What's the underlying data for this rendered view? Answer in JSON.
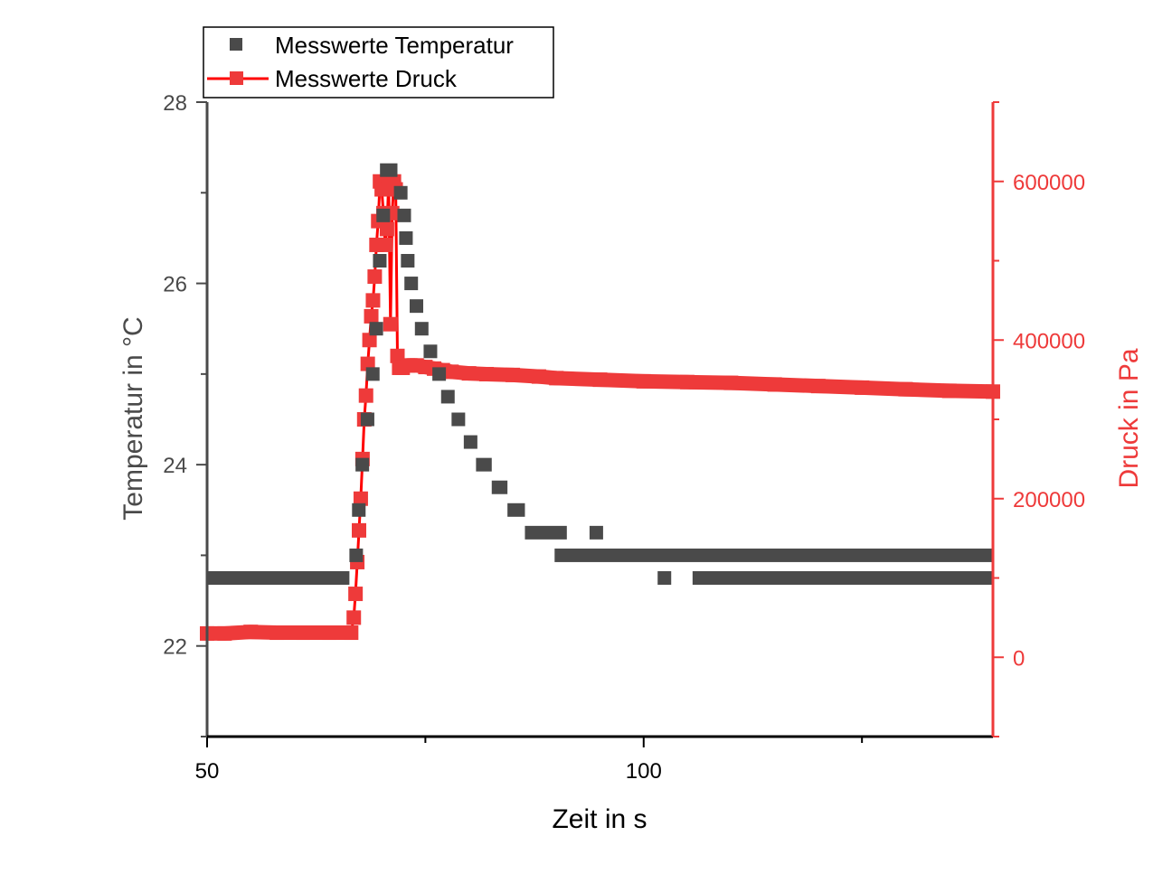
{
  "chart_data": {
    "type": "scatter",
    "title": "",
    "xlabel": "Zeit in s",
    "ylabel_left": "Temperatur in °C",
    "ylabel_right": "Druck in Pa",
    "xlim": [
      50,
      140
    ],
    "ylim_left": [
      21,
      28
    ],
    "ylim_right": [
      -100000,
      700000
    ],
    "x_ticks": [
      50,
      100
    ],
    "y_left_ticks": [
      22,
      24,
      26,
      28
    ],
    "y_right_ticks": [
      0,
      200000,
      400000,
      600000
    ],
    "legend_position": "top-left",
    "grid": false,
    "colors": {
      "temperature": "#4a4a4a",
      "pressure": "#ee3a3a",
      "pressure_line": "#ff0000",
      "right_axis": "#ee3a3a"
    },
    "series": [
      {
        "name": "Messwerte Temperatur",
        "axis": "left",
        "marker": "square",
        "segments": [
          {
            "x0": 50.0,
            "x1": 66.3,
            "y": 22.75
          },
          {
            "x0": 66.3,
            "x1": 66.6,
            "y": 23.0
          },
          {
            "x0": 66.6,
            "x1": 67.0,
            "y": 23.5
          },
          {
            "x0": 67.0,
            "x1": 67.6,
            "y": 24.0
          },
          {
            "x0": 67.6,
            "x1": 68.2,
            "y": 24.5
          },
          {
            "x0": 68.2,
            "x1": 68.6,
            "y": 25.0
          },
          {
            "x0": 68.6,
            "x1": 69.0,
            "y": 25.5
          },
          {
            "x0": 69.0,
            "x1": 69.4,
            "y": 26.25
          },
          {
            "x0": 69.4,
            "x1": 69.8,
            "y": 26.75
          },
          {
            "x0": 69.8,
            "x1": 71.8,
            "y": 27.25
          },
          {
            "x0": 71.4,
            "x1": 72.0,
            "y": 27.0
          },
          {
            "x0": 71.8,
            "x1": 72.2,
            "y": 26.75
          },
          {
            "x0": 72.0,
            "x1": 72.4,
            "y": 26.5
          },
          {
            "x0": 72.2,
            "x1": 72.8,
            "y": 26.25
          },
          {
            "x0": 72.6,
            "x1": 73.2,
            "y": 26.0
          },
          {
            "x0": 73.2,
            "x1": 74.0,
            "y": 25.75
          },
          {
            "x0": 73.8,
            "x1": 74.8,
            "y": 25.5
          },
          {
            "x0": 74.8,
            "x1": 75.8,
            "y": 25.25
          },
          {
            "x0": 75.8,
            "x1": 76.8,
            "y": 25.0
          },
          {
            "x0": 76.8,
            "x1": 78.0,
            "y": 24.75
          },
          {
            "x0": 78.0,
            "x1": 79.4,
            "y": 24.5
          },
          {
            "x0": 79.4,
            "x1": 80.8,
            "y": 24.25
          },
          {
            "x0": 80.8,
            "x1": 82.6,
            "y": 24.0
          },
          {
            "x0": 82.6,
            "x1": 84.4,
            "y": 23.75
          },
          {
            "x0": 84.4,
            "x1": 86.4,
            "y": 23.5
          },
          {
            "x0": 86.4,
            "x1": 91.2,
            "y": 23.25
          },
          {
            "x0": 93.8,
            "x1": 94.8,
            "y": 23.25
          },
          {
            "x0": 89.8,
            "x1": 140.0,
            "y": 23.0
          },
          {
            "x0": 101.6,
            "x1": 102.6,
            "y": 22.75
          },
          {
            "x0": 105.6,
            "x1": 140.0,
            "y": 22.75
          }
        ]
      },
      {
        "name": "Messwerte Druck",
        "axis": "right",
        "marker": "square-line",
        "x": [
          50,
          52,
          55,
          58,
          61,
          64,
          66.5,
          66.8,
          67.0,
          67.2,
          67.4,
          67.6,
          67.8,
          68.0,
          68.2,
          68.4,
          68.6,
          68.8,
          69.0,
          69.2,
          69.4,
          69.6,
          69.8,
          70.0,
          70.2,
          70.4,
          70.6,
          70.8,
          71.0,
          71.2,
          71.4,
          71.6,
          71.8,
          72.0,
          72.4,
          73,
          74,
          75,
          76,
          77,
          78,
          80,
          82,
          85,
          88,
          90,
          95,
          100,
          105,
          110,
          115,
          120,
          125,
          130,
          135,
          140
        ],
        "y": [
          30000,
          30000,
          32000,
          31000,
          31000,
          31000,
          31000,
          50000,
          80000,
          120000,
          160000,
          200000,
          250000,
          300000,
          330000,
          370000,
          400000,
          430000,
          450000,
          480000,
          520000,
          550000,
          600000,
          590000,
          560000,
          520000,
          540000,
          600000,
          420000,
          560000,
          600000,
          590000,
          380000,
          365000,
          365000,
          368000,
          368000,
          366000,
          364000,
          362000,
          360000,
          358000,
          357000,
          356000,
          354000,
          352000,
          350000,
          348000,
          347000,
          346000,
          344000,
          342000,
          340000,
          338000,
          336000,
          335000
        ]
      }
    ]
  }
}
